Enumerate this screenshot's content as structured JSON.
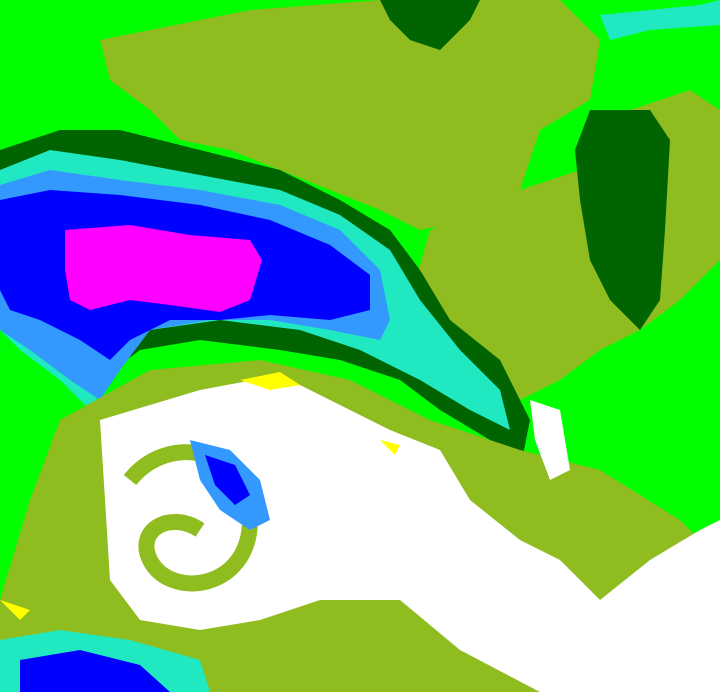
{
  "image": {
    "kind": "enhanced satellite cloud imagery",
    "palette": {
      "background_green": "#00ff00",
      "olive": "#8fbd20",
      "dark_green": "#006400",
      "cyan": "#20e8c0",
      "light_blue": "#3399ff",
      "blue": "#0000ff",
      "magenta": "#ff00ff",
      "white": "#ffffff",
      "yellow": "#ffff00"
    }
  }
}
